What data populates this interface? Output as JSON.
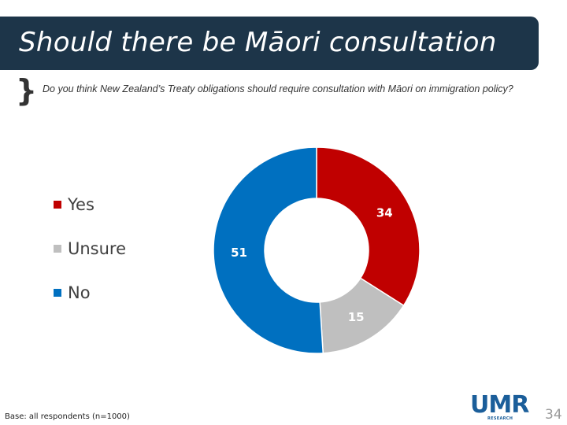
{
  "header": {
    "title": "Should there be Māori consultation"
  },
  "question": {
    "bracket_glyph": "}",
    "text": "Do you think New Zealand’s Treaty obligations should require consultation with Māori  on immigration policy?"
  },
  "legend": {
    "items": [
      {
        "label": "Yes",
        "color": "#c00000"
      },
      {
        "label": "Unsure",
        "color": "#bfbfbf"
      },
      {
        "label": "No",
        "color": "#0070c0"
      }
    ]
  },
  "chart_data": {
    "type": "pie",
    "subtype": "donut",
    "title": "",
    "categories": [
      "Yes",
      "Unsure",
      "No"
    ],
    "values": [
      34,
      15,
      51
    ],
    "data_labels": [
      "34",
      "15",
      "51"
    ],
    "colors": [
      "#c00000",
      "#bfbfbf",
      "#0070c0"
    ],
    "start": "top",
    "direction": "clockwise",
    "legend_position": "left"
  },
  "footer": {
    "base_note": "Base: all respondents (n=1000)",
    "logo_text": "UMR",
    "logo_subtext": "RESEARCH",
    "page_number": "34"
  }
}
